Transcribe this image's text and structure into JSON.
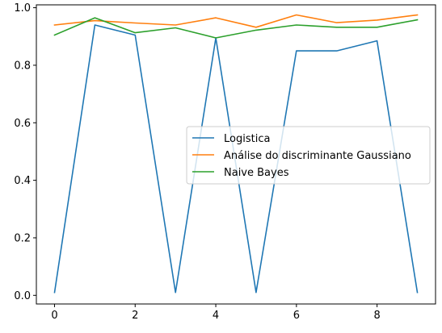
{
  "chart_data": {
    "type": "line",
    "title": "",
    "xlabel": "",
    "ylabel": "",
    "x": [
      0,
      1,
      2,
      3,
      4,
      5,
      6,
      7,
      8,
      9
    ],
    "xlim": [
      -0.45,
      9.45
    ],
    "ylim": [
      -0.03,
      1.01
    ],
    "xticks": [
      "0",
      "2",
      "4",
      "6",
      "8"
    ],
    "yticks": [
      "0.0",
      "0.2",
      "0.4",
      "0.6",
      "0.8",
      "1.0"
    ],
    "grid": false,
    "legend_position": "center-right",
    "series": [
      {
        "name": "Logistica",
        "color": "#1f77b4",
        "values": [
          0.01,
          0.94,
          0.905,
          0.01,
          0.895,
          0.01,
          0.85,
          0.85,
          0.885,
          0.01
        ]
      },
      {
        "name": "Análise do discriminante Gaussiano",
        "color": "#ff7f0e",
        "values": [
          0.94,
          0.955,
          0.947,
          0.94,
          0.965,
          0.932,
          0.975,
          0.948,
          0.957,
          0.975
        ]
      },
      {
        "name": "Naive Bayes",
        "color": "#2ca02c",
        "values": [
          0.905,
          0.965,
          0.913,
          0.93,
          0.895,
          0.922,
          0.94,
          0.932,
          0.932,
          0.958
        ]
      }
    ]
  }
}
